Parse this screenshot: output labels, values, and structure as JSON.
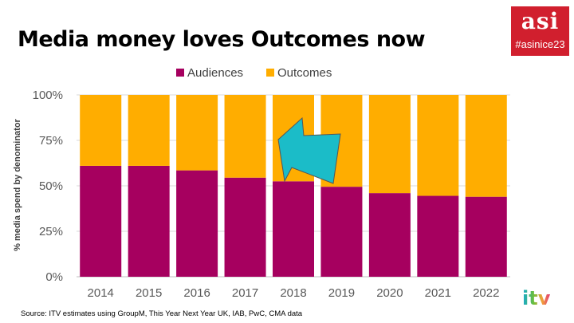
{
  "slide": {
    "title": "Media money loves Outcomes now",
    "source": "Source: ITV estimates using GroupM, This Year Next Year UK, IAB, PwC, CMA data"
  },
  "logos": {
    "asi": "asi",
    "asi_hashtag": "#asinice23",
    "itv": "itv"
  },
  "colors": {
    "audiences": "#a6005f",
    "outcomes": "#ffad00",
    "arrow": "#1bbcc8",
    "asi_brand": "#d11f2e"
  },
  "chart_data": {
    "type": "bar",
    "stacked": true,
    "categories": [
      "2014",
      "2015",
      "2016",
      "2017",
      "2018",
      "2019",
      "2020",
      "2021",
      "2022"
    ],
    "series": [
      {
        "name": "Audiences",
        "values": [
          61,
          61,
          58.5,
          54.5,
          52.5,
          49.5,
          46,
          44.5,
          44
        ]
      },
      {
        "name": "Outcomes",
        "values": [
          39,
          39,
          41.5,
          45.5,
          47.5,
          50.5,
          54,
          55.5,
          56
        ]
      }
    ],
    "ylabel": "% media spend by denominator",
    "ylim": [
      0,
      100
    ],
    "yticks": [
      "0%",
      "25%",
      "50%",
      "75%",
      "100%"
    ],
    "grid": true,
    "legend_position": "top",
    "annotation": {
      "type": "arrow",
      "points_to": "2019"
    }
  }
}
